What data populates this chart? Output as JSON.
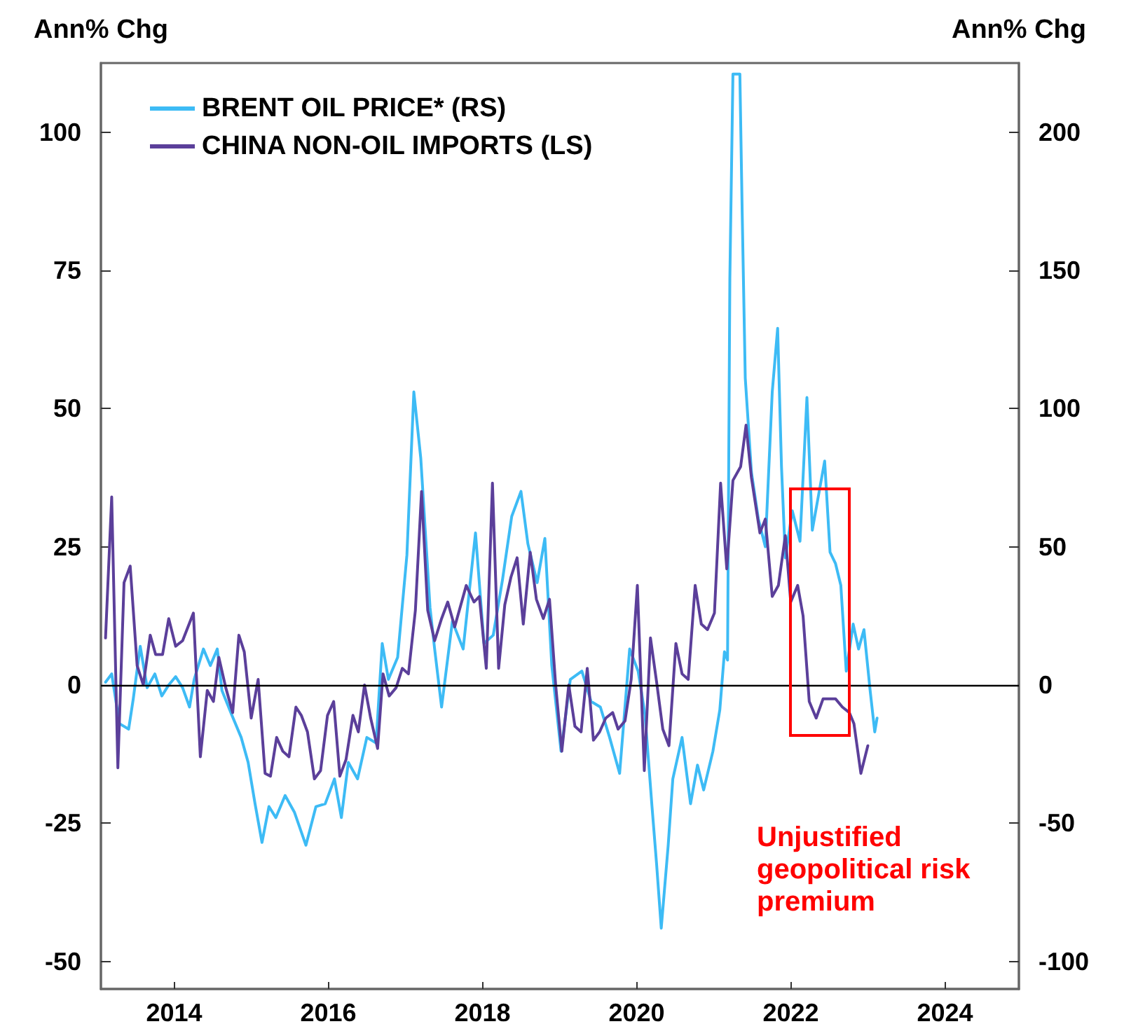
{
  "chart_data": {
    "type": "line",
    "ylabel": "Ann% Chg",
    "y2label": "Ann% Chg",
    "xlim": [
      2013.05,
      2024.96
    ],
    "xticks": [
      2014,
      2016,
      2018,
      2020,
      2022,
      2024
    ],
    "ylim": [
      -55,
      112.5
    ],
    "yticks": [
      -50,
      -25,
      0,
      25,
      50,
      75,
      100
    ],
    "y2lim": [
      -110,
      225
    ],
    "y2ticks": [
      -100,
      -50,
      0,
      50,
      100,
      150,
      200
    ],
    "legend": "top left",
    "grid": false,
    "marker": "none",
    "line_style": "solid",
    "ref_lines": [
      {
        "axis": "y",
        "value": 0,
        "color": "#000000"
      }
    ],
    "annotations": [
      "Unjustified geopolitical risk premium"
    ],
    "series": [
      {
        "name": "BRENT OIL PRICE* (RS)",
        "color": "#3dbbf5",
        "axis": "y2",
        "x": [
          2013.11,
          2013.19,
          2013.29,
          2013.41,
          2013.47,
          2013.56,
          2013.65,
          2013.75,
          2013.84,
          2013.93,
          2014.02,
          2014.11,
          2014.2,
          2014.26,
          2014.38,
          2014.47,
          2014.56,
          2014.62,
          2014.75,
          2014.87,
          2014.96,
          2015.05,
          2015.14,
          2015.23,
          2015.32,
          2015.44,
          2015.56,
          2015.71,
          2015.84,
          2015.96,
          2016.08,
          2016.17,
          2016.26,
          2016.38,
          2016.5,
          2016.62,
          2016.7,
          2016.78,
          2016.9,
          2017.02,
          2017.11,
          2017.2,
          2017.32,
          2017.38,
          2017.47,
          2017.61,
          2017.75,
          2017.91,
          2018.02,
          2018.14,
          2018.26,
          2018.38,
          2018.5,
          2018.59,
          2018.71,
          2018.81,
          2018.9,
          2019.02,
          2019.14,
          2019.29,
          2019.41,
          2019.53,
          2019.65,
          2019.78,
          2019.91,
          2020.02,
          2020.11,
          2020.2,
          2020.26,
          2020.32,
          2020.41,
          2020.47,
          2020.59,
          2020.7,
          2020.79,
          2020.87,
          2020.99,
          2021.08,
          2021.14,
          2021.18,
          2021.21,
          2021.25,
          2021.34,
          2021.37,
          2021.41,
          2021.49,
          2021.58,
          2021.67,
          2021.76,
          2021.83,
          2021.88,
          2021.93,
          2022.02,
          2022.12,
          2022.21,
          2022.28,
          2022.35,
          2022.44,
          2022.51,
          2022.58,
          2022.65,
          2022.72,
          2022.81,
          2022.88,
          2022.95,
          2023.03,
          2023.09,
          2023.12
        ],
        "values": [
          1,
          4,
          -14,
          -16,
          -5,
          14,
          -1,
          4,
          -4,
          0,
          3,
          -1,
          -8,
          2,
          13,
          7,
          13,
          -2,
          -11,
          -19,
          -28,
          -43,
          -57,
          -44,
          -48,
          -40,
          -46,
          -58,
          -44,
          -43,
          -34,
          -48,
          -28,
          -34,
          -19,
          -21,
          15,
          2,
          10,
          47,
          106,
          82,
          28,
          13,
          -8,
          23,
          13,
          55,
          15,
          18,
          38,
          61,
          70,
          51,
          37,
          53,
          7,
          -24,
          2,
          5,
          -6,
          -8,
          -19,
          -32,
          13,
          5,
          -11,
          -44,
          -65,
          -88,
          -58,
          -34,
          -19,
          -43,
          -29,
          -38,
          -24,
          -9,
          12,
          9,
          147,
          221,
          221,
          171,
          111,
          77,
          60,
          50,
          106,
          129,
          79,
          46,
          63,
          52,
          104,
          56,
          67,
          81,
          48,
          44,
          36,
          5,
          22,
          13,
          20,
          -2,
          -17,
          -12
        ]
      },
      {
        "name": "CHINA NON-OIL IMPORTS (LS)",
        "color": "#5b3f9a",
        "x": [
          2013.11,
          2013.19,
          2013.27,
          2013.35,
          2013.43,
          2013.52,
          2013.6,
          2013.69,
          2013.76,
          2013.85,
          2013.93,
          2014.02,
          2014.11,
          2014.18,
          2014.25,
          2014.34,
          2014.43,
          2014.51,
          2014.58,
          2014.67,
          2014.76,
          2014.84,
          2014.91,
          2015.0,
          2015.09,
          2015.18,
          2015.25,
          2015.33,
          2015.41,
          2015.49,
          2015.58,
          2015.65,
          2015.73,
          2015.82,
          2015.9,
          2015.99,
          2016.07,
          2016.15,
          2016.23,
          2016.32,
          2016.39,
          2016.47,
          2016.55,
          2016.64,
          2016.71,
          2016.79,
          2016.88,
          2016.96,
          2017.04,
          2017.13,
          2017.21,
          2017.29,
          2017.38,
          2017.47,
          2017.55,
          2017.64,
          2017.79,
          2017.89,
          2017.96,
          2018.05,
          2018.13,
          2018.21,
          2018.29,
          2018.37,
          2018.45,
          2018.53,
          2018.62,
          2018.7,
          2018.79,
          2018.87,
          2018.95,
          2019.03,
          2019.12,
          2019.2,
          2019.28,
          2019.36,
          2019.44,
          2019.52,
          2019.6,
          2019.69,
          2019.76,
          2019.85,
          2019.93,
          2020.01,
          2020.1,
          2020.18,
          2020.26,
          2020.34,
          2020.42,
          2020.51,
          2020.59,
          2020.67,
          2020.76,
          2020.84,
          2020.92,
          2021.01,
          2021.09,
          2021.17,
          2021.25,
          2021.35,
          2021.42,
          2021.49,
          2021.6,
          2021.67,
          2021.76,
          2021.84,
          2021.93,
          2022.0,
          2022.09,
          2022.16,
          2022.24,
          2022.33,
          2022.42,
          2022.53,
          2022.58,
          2022.67,
          2022.76,
          2022.82,
          2022.91,
          2023.0
        ],
        "values": [
          8.5,
          34,
          -15,
          18.5,
          21.5,
          3.5,
          0,
          9,
          5.5,
          5.5,
          12,
          7,
          8,
          10.5,
          13,
          -13,
          -1,
          -3,
          5,
          -0.5,
          -5,
          9,
          6,
          -6,
          1,
          -16,
          -16.5,
          -9.5,
          -12,
          -13,
          -4,
          -5.5,
          -8.5,
          -17,
          -15.5,
          -5.5,
          -3,
          -16.5,
          -13.5,
          -5.5,
          -8.5,
          0,
          -6,
          -11.5,
          2,
          -2,
          -0.5,
          3,
          2,
          13.5,
          35,
          13.5,
          8,
          12,
          15,
          10.5,
          18,
          15,
          16,
          3,
          36.5,
          3,
          14.5,
          19.5,
          23,
          11,
          24,
          15.5,
          12,
          15.5,
          0,
          -12,
          0,
          -7.5,
          -8.5,
          3,
          -10,
          -8.5,
          -6,
          -5,
          -8,
          -6.5,
          1,
          18,
          -15.5,
          8.5,
          0.5,
          -8,
          -11,
          7.5,
          2,
          1,
          18,
          11,
          10,
          13,
          36.5,
          21,
          37,
          39.5,
          47,
          37.5,
          27.5,
          30,
          16,
          18,
          27,
          15,
          18,
          12.5,
          -3,
          -6,
          -2.5,
          -2.5,
          -2.5,
          -4,
          -5,
          -7,
          -16,
          -11
        ]
      }
    ]
  }
}
